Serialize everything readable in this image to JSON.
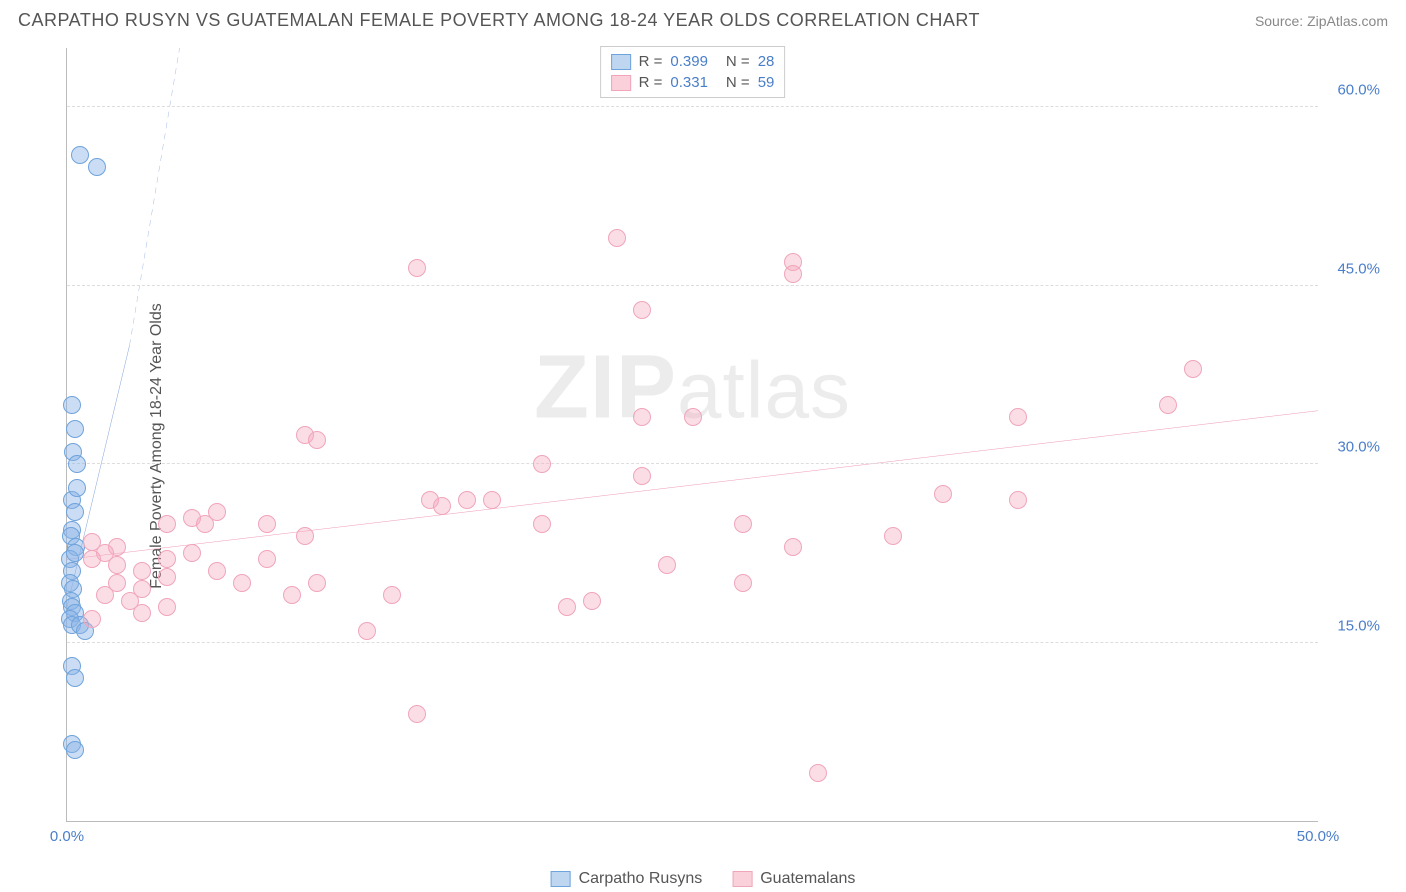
{
  "header": {
    "title": "CARPATHO RUSYN VS GUATEMALAN FEMALE POVERTY AMONG 18-24 YEAR OLDS CORRELATION CHART",
    "source": "Source: ZipAtlas.com"
  },
  "chart": {
    "type": "scatter",
    "ylabel": "Female Poverty Among 18-24 Year Olds",
    "watermark": "ZIPatlas",
    "xlim": [
      0,
      50
    ],
    "ylim": [
      0,
      65
    ],
    "xticks": [
      {
        "v": 0,
        "label": "0.0%"
      },
      {
        "v": 50,
        "label": "50.0%"
      }
    ],
    "yticks": [
      {
        "v": 15,
        "label": "15.0%"
      },
      {
        "v": 30,
        "label": "30.0%"
      },
      {
        "v": 45,
        "label": "45.0%"
      },
      {
        "v": 60,
        "label": "60.0%"
      }
    ],
    "background_color": "#ffffff",
    "grid_color": "#dddddd",
    "axis_color": "#bbbbbb",
    "tick_label_color": "#4a7ec9",
    "marker_size": 18,
    "series": [
      {
        "name": "Carpatho Rusyns",
        "color_fill": "rgba(138,180,230,0.45)",
        "color_stroke": "#6fa3db",
        "R": "0.399",
        "N": "28",
        "trend": {
          "x1": 0,
          "y1": 18,
          "x2": 2.5,
          "y2": 40,
          "dash_from_x": 2.5,
          "dash_to": {
            "x": 4.5,
            "y": 65
          },
          "color": "#3366c4",
          "width": 2.5
        },
        "points": [
          [
            0.5,
            56
          ],
          [
            1.2,
            55
          ],
          [
            0.2,
            35
          ],
          [
            0.3,
            33
          ],
          [
            0.25,
            31
          ],
          [
            0.4,
            30
          ],
          [
            0.2,
            27
          ],
          [
            0.3,
            26
          ],
          [
            0.2,
            24.5
          ],
          [
            0.15,
            24
          ],
          [
            0.35,
            23
          ],
          [
            0.1,
            22
          ],
          [
            0.2,
            21
          ],
          [
            0.3,
            22.5
          ],
          [
            0.1,
            20
          ],
          [
            0.25,
            19.5
          ],
          [
            0.15,
            18.5
          ],
          [
            0.2,
            18
          ],
          [
            0.3,
            17.5
          ],
          [
            0.1,
            17
          ],
          [
            0.2,
            16.5
          ],
          [
            0.5,
            16.5
          ],
          [
            0.7,
            16
          ],
          [
            0.2,
            13
          ],
          [
            0.3,
            12
          ],
          [
            0.2,
            6.5
          ],
          [
            0.3,
            6
          ],
          [
            0.4,
            28
          ]
        ]
      },
      {
        "name": "Guatemalans",
        "color_fill": "rgba(245,170,190,0.4)",
        "color_stroke": "#f0a5bb",
        "R": "0.331",
        "N": "59",
        "trend": {
          "x1": 0,
          "y1": 22,
          "x2": 50,
          "y2": 34.5,
          "color": "#e85a8a",
          "width": 2.5
        },
        "points": [
          [
            22,
            49
          ],
          [
            29,
            47
          ],
          [
            14,
            46.5
          ],
          [
            23,
            43
          ],
          [
            29,
            46
          ],
          [
            45,
            38
          ],
          [
            44,
            35
          ],
          [
            38,
            34
          ],
          [
            23,
            34
          ],
          [
            25,
            34
          ],
          [
            9.5,
            32.5
          ],
          [
            10,
            32
          ],
          [
            19,
            30
          ],
          [
            23,
            29
          ],
          [
            14.5,
            27
          ],
          [
            15,
            26.5
          ],
          [
            16,
            27
          ],
          [
            17,
            27
          ],
          [
            35,
            27.5
          ],
          [
            38,
            27
          ],
          [
            6,
            26
          ],
          [
            5,
            25.5
          ],
          [
            5.5,
            25
          ],
          [
            8,
            25
          ],
          [
            4,
            25
          ],
          [
            19,
            25
          ],
          [
            27,
            25
          ],
          [
            33,
            24
          ],
          [
            9.5,
            24
          ],
          [
            1,
            23.5
          ],
          [
            2,
            23
          ],
          [
            1.5,
            22.5
          ],
          [
            1,
            22
          ],
          [
            2,
            21.5
          ],
          [
            3,
            21
          ],
          [
            4,
            22
          ],
          [
            6,
            21
          ],
          [
            7,
            20
          ],
          [
            5,
            22.5
          ],
          [
            8,
            22
          ],
          [
            10,
            20
          ],
          [
            4,
            20.5
          ],
          [
            2,
            20
          ],
          [
            3,
            19.5
          ],
          [
            1.5,
            19
          ],
          [
            2.5,
            18.5
          ],
          [
            27,
            20
          ],
          [
            20,
            18
          ],
          [
            21,
            18.5
          ],
          [
            24,
            21.5
          ],
          [
            13,
            19
          ],
          [
            9,
            19
          ],
          [
            4,
            18
          ],
          [
            3,
            17.5
          ],
          [
            1,
            17
          ],
          [
            12,
            16
          ],
          [
            14,
            9
          ],
          [
            30,
            4
          ],
          [
            29,
            23
          ]
        ]
      }
    ]
  },
  "legend_top": {
    "rows": [
      {
        "swatch": "blue",
        "r_label": "R =",
        "r_val": "0.399",
        "n_label": "N =",
        "n_val": "28"
      },
      {
        "swatch": "pink",
        "r_label": "R =",
        "r_val": "0.331",
        "n_label": "N =",
        "n_val": "59"
      }
    ]
  },
  "legend_bottom": [
    {
      "swatch": "blue",
      "label": "Carpatho Rusyns"
    },
    {
      "swatch": "pink",
      "label": "Guatemalans"
    }
  ]
}
